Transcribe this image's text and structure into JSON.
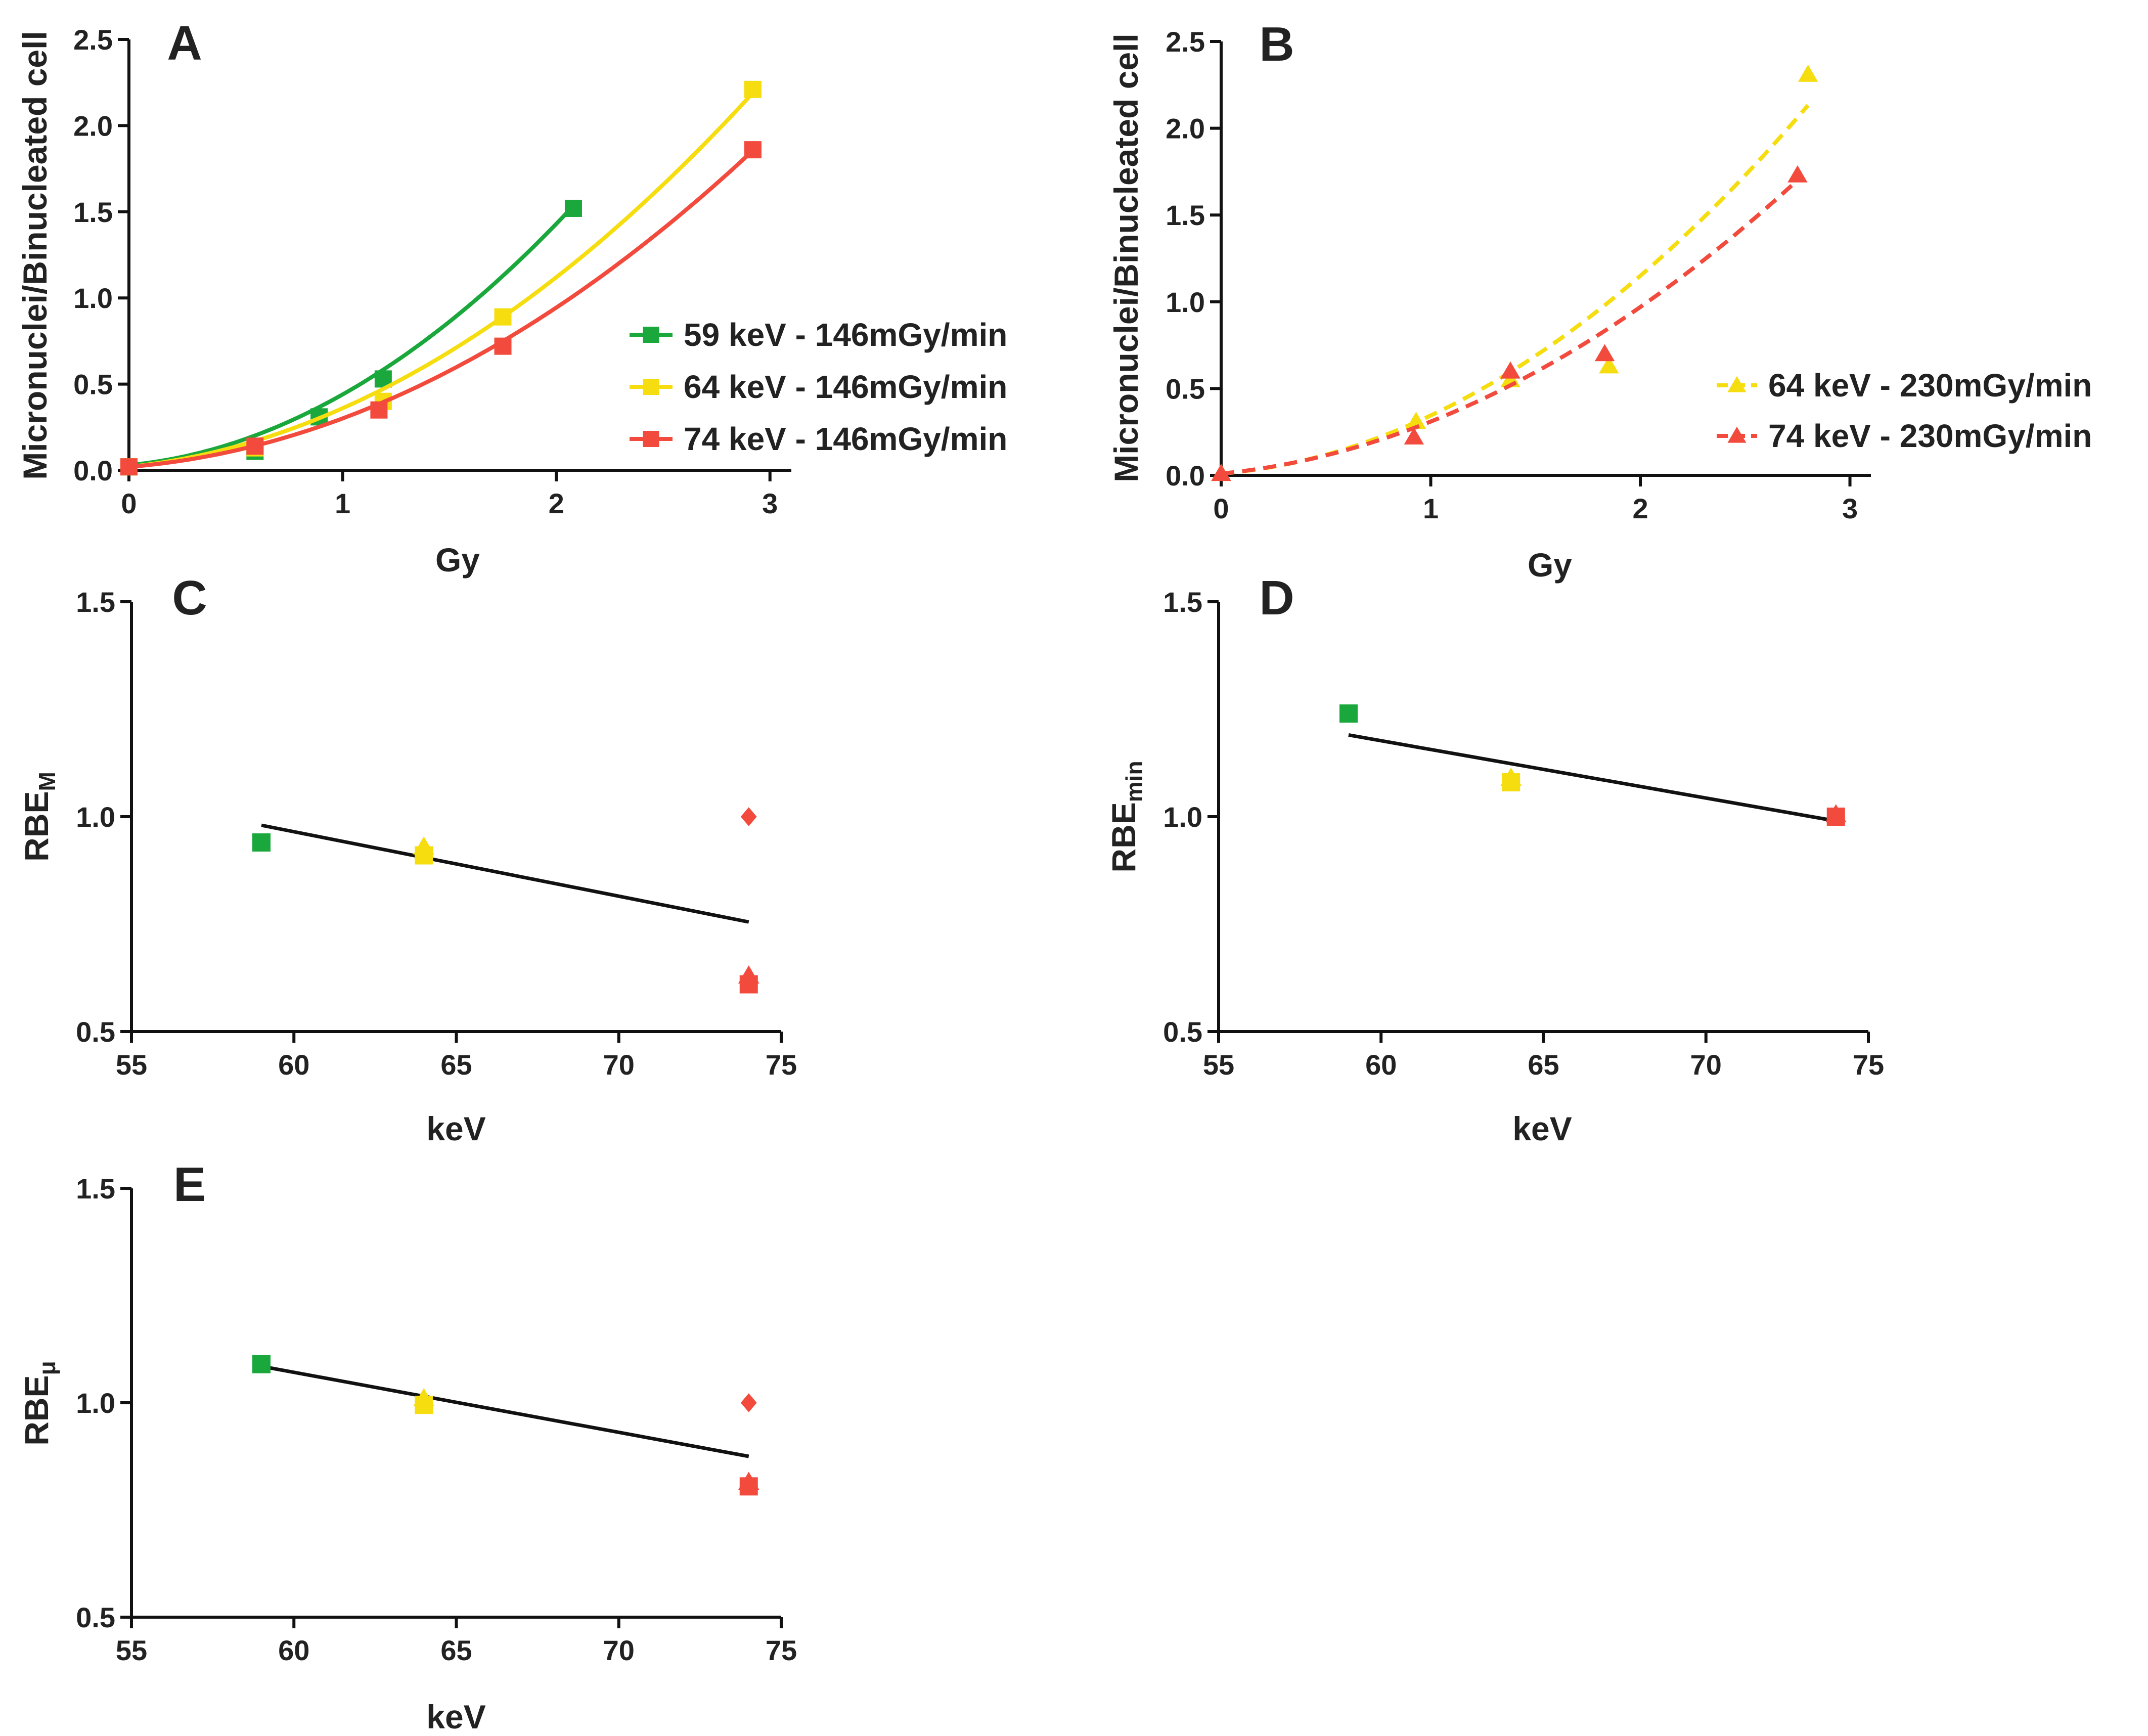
{
  "colors": {
    "green": "#1aa83c",
    "yellow": "#f5dd10",
    "red": "#f24a3c",
    "black": "#111111"
  },
  "chart_data": [
    {
      "panel": "A",
      "type": "scatter",
      "xlabel": "Gy",
      "ylabel": "Micronuclei/Binucleated cell",
      "xlim": [
        0,
        3.1
      ],
      "ylim": [
        0,
        2.5
      ],
      "xticks": [
        "0",
        "1",
        "2",
        "3"
      ],
      "yticks": [
        "0.0",
        "0.5",
        "1.0",
        "1.5",
        "2.0",
        "2.5"
      ],
      "legend_position": "right",
      "series": [
        {
          "name": "59 keV - 146mGy/min",
          "color": "green",
          "marker": "square",
          "line": "solid",
          "x": [
            0,
            0.59,
            0.89,
            1.19,
            2.08
          ],
          "y": [
            0.02,
            0.11,
            0.31,
            0.53,
            1.52
          ],
          "fit": {
            "a": 0.03,
            "b": 0.12,
            "c": 0.29,
            "xmax": 2.08
          }
        },
        {
          "name": "64 keV - 146mGy/min",
          "color": "yellow",
          "marker": "square",
          "line": "solid",
          "x": [
            0,
            0.59,
            1.19,
            1.75,
            2.92
          ],
          "y": [
            0.02,
            0.13,
            0.4,
            0.89,
            2.21
          ],
          "fit": {
            "a": 0.02,
            "b": 0.13,
            "c": 0.21,
            "xmax": 2.92
          }
        },
        {
          "name": "74 keV - 146mGy/min",
          "color": "red",
          "marker": "square",
          "line": "solid",
          "x": [
            0,
            0.59,
            1.17,
            1.75,
            2.92
          ],
          "y": [
            0.02,
            0.14,
            0.35,
            0.72,
            1.86
          ],
          "fit": {
            "a": 0.02,
            "b": 0.1,
            "c": 0.181,
            "xmax": 2.92
          }
        }
      ]
    },
    {
      "panel": "B",
      "type": "scatter",
      "xlabel": "Gy",
      "ylabel": "Micronuclei/Binucleated cell",
      "xlim": [
        0,
        3.1
      ],
      "ylim": [
        0,
        2.5
      ],
      "xticks": [
        "0",
        "1",
        "2",
        "3"
      ],
      "yticks": [
        "0.0",
        "0.5",
        "1.0",
        "1.5",
        "2.0",
        "2.5"
      ],
      "legend_position": "right",
      "series": [
        {
          "name": "64 keV - 230mGy/min",
          "color": "yellow",
          "marker": "triangle",
          "line": "dashed",
          "x": [
            0,
            0.93,
            1.38,
            1.85,
            2.8
          ],
          "y": [
            0.01,
            0.31,
            0.55,
            0.63,
            2.31
          ],
          "fit": {
            "a": 0.01,
            "b": 0.1,
            "c": 0.235,
            "xmax": 2.8
          }
        },
        {
          "name": "74 keV - 230mGy/min",
          "color": "red",
          "marker": "triangle",
          "line": "dashed",
          "x": [
            0,
            0.92,
            1.38,
            1.83,
            2.75
          ],
          "y": [
            0.01,
            0.22,
            0.6,
            0.7,
            1.73
          ],
          "fit": {
            "a": 0.01,
            "b": 0.12,
            "c": 0.18,
            "xmax": 2.75
          }
        }
      ]
    },
    {
      "panel": "C",
      "type": "scatter",
      "xlabel": "keV",
      "ylabel": "RBE",
      "ylabel_sub": "M",
      "xlim": [
        55,
        75
      ],
      "ylim": [
        0.5,
        1.5
      ],
      "xticks": [
        "55",
        "60",
        "65",
        "70",
        "75"
      ],
      "yticks": [
        "0.5",
        "1.0",
        "1.5"
      ],
      "points": [
        {
          "x": 59,
          "y": 0.94,
          "color": "green",
          "marker": "square"
        },
        {
          "x": 64,
          "y": 0.93,
          "color": "yellow",
          "marker": "triangle"
        },
        {
          "x": 64,
          "y": 0.91,
          "color": "yellow",
          "marker": "square"
        },
        {
          "x": 74,
          "y": 1.0,
          "color": "red",
          "marker": "diamond"
        },
        {
          "x": 74,
          "y": 0.63,
          "color": "red",
          "marker": "triangle"
        },
        {
          "x": 74,
          "y": 0.61,
          "color": "red",
          "marker": "square"
        }
      ],
      "trend": {
        "x": [
          59,
          74
        ],
        "y": [
          0.98,
          0.755
        ]
      }
    },
    {
      "panel": "D",
      "type": "scatter",
      "xlabel": "keV",
      "ylabel": "RBE",
      "ylabel_sub": "min",
      "xlim": [
        55,
        75
      ],
      "ylim": [
        0.5,
        1.5
      ],
      "xticks": [
        "55",
        "60",
        "65",
        "70",
        "75"
      ],
      "yticks": [
        "0.5",
        "1.0",
        "1.5"
      ],
      "points": [
        {
          "x": 59,
          "y": 1.24,
          "color": "green",
          "marker": "square"
        },
        {
          "x": 64,
          "y": 1.09,
          "color": "yellow",
          "marker": "triangle"
        },
        {
          "x": 64,
          "y": 1.08,
          "color": "yellow",
          "marker": "square"
        },
        {
          "x": 74,
          "y": 1.005,
          "color": "red",
          "marker": "triangle"
        },
        {
          "x": 74,
          "y": 1.0,
          "color": "red",
          "marker": "square"
        }
      ],
      "trend": {
        "x": [
          59,
          74
        ],
        "y": [
          1.19,
          0.99
        ]
      }
    },
    {
      "panel": "E",
      "type": "scatter",
      "xlabel": "keV",
      "ylabel": "RBE",
      "ylabel_sub": "μ",
      "xlim": [
        55,
        75
      ],
      "ylim": [
        0.5,
        1.5
      ],
      "xticks": [
        "55",
        "60",
        "65",
        "70",
        "75"
      ],
      "yticks": [
        "0.5",
        "1.0",
        "1.5"
      ],
      "points": [
        {
          "x": 59,
          "y": 1.09,
          "color": "green",
          "marker": "square"
        },
        {
          "x": 64,
          "y": 1.01,
          "color": "yellow",
          "marker": "triangle"
        },
        {
          "x": 64,
          "y": 0.995,
          "color": "yellow",
          "marker": "square"
        },
        {
          "x": 74,
          "y": 1.0,
          "color": "red",
          "marker": "diamond"
        },
        {
          "x": 74,
          "y": 0.815,
          "color": "red",
          "marker": "triangle"
        },
        {
          "x": 74,
          "y": 0.805,
          "color": "red",
          "marker": "square"
        }
      ],
      "trend": {
        "x": [
          59,
          74
        ],
        "y": [
          1.085,
          0.875
        ]
      }
    }
  ]
}
